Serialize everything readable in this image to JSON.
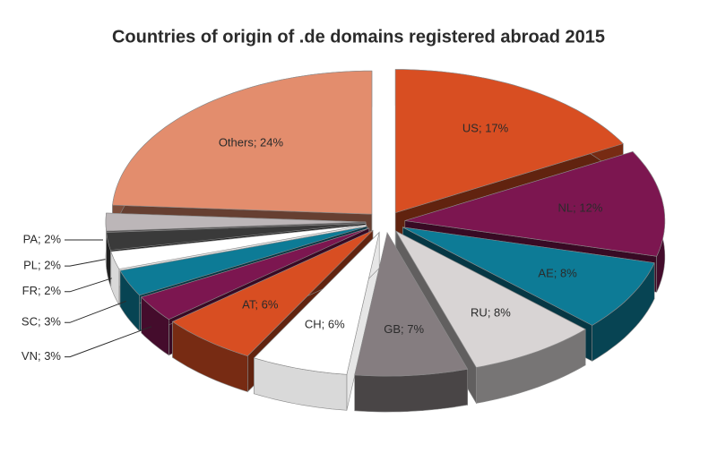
{
  "chart_data": {
    "type": "pie3d",
    "title": "Countries of origin of .de domains registered abroad 2015",
    "values": [
      17,
      12,
      8,
      8,
      7,
      6,
      6,
      3,
      3,
      2,
      2,
      2,
      24
    ],
    "value_labels": [
      "US; 17%",
      "NL; 12%",
      "AE; 8%",
      "RU; 8%",
      "GB; 7%",
      "CH; 6%",
      "AT; 6%",
      "VN; 3%",
      "SC; 3%",
      "FR; 2%",
      "PL; 2%",
      "PA; 2%",
      "Others; 24%"
    ],
    "colors": [
      "#d84e22",
      "#7c1650",
      "#0d7b96",
      "#d8d4d4",
      "#857d80",
      "#ffffff",
      "#d84e22",
      "#7c1650",
      "#0d7b96",
      "#ffffff",
      "#3a3a3a",
      "#bcb6b8",
      "#e38d6d"
    ]
  }
}
